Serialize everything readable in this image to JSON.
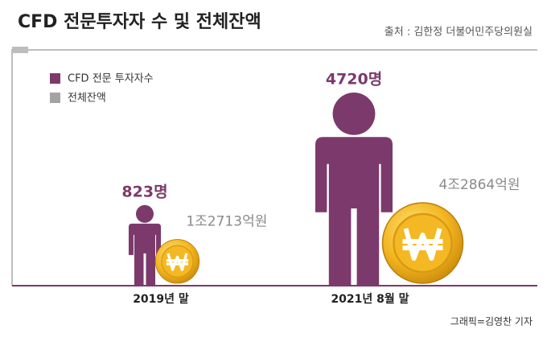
{
  "chart_data": {
    "type": "pictogram",
    "title": "CFD 전문투자자 수 및 전체잔액",
    "source": "출처 : 김한정 더불어민주당의원실",
    "credit": "그래픽=김영찬 기자",
    "categories": [
      "2019년 말",
      "2021년 8월 말"
    ],
    "series": [
      {
        "name": "CFD 전문 투자자수",
        "color": "#7b3a6b",
        "values": [
          823,
          4720
        ],
        "value_labels": [
          "823명",
          "4720명"
        ]
      },
      {
        "name": "전체잔액",
        "color": "#a3a3a3",
        "values": [
          12713,
          42864
        ],
        "value_labels": [
          "1조2713억원",
          "4조2864억원"
        ]
      }
    ]
  }
}
